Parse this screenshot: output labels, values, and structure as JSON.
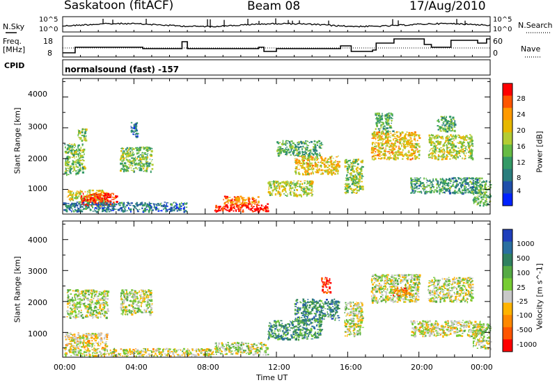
{
  "header": {
    "station": "Saskatoon (fitACF)",
    "beam": "Beam 08",
    "date": "17/Aug/2010"
  },
  "top_panels": {
    "nsky_label": "N.Sky",
    "nsky_ticks": [
      "10^5",
      "10^0"
    ],
    "nsearch_label": "N.Search",
    "nsearch_ticks": [
      "10^5",
      "10^0"
    ],
    "freq_label_1": "Freq.",
    "freq_label_2": "[MHz]",
    "freq_ticks": [
      "18",
      "8"
    ],
    "nave_label": "Nave",
    "nave_ticks": [
      "60",
      "0"
    ],
    "cpid_label": "CPID",
    "cpid_text": "normalsound (fast) -157"
  },
  "chart_data": [
    {
      "type": "heatmap",
      "panel": "power",
      "ylabel": "Slant Range [km]",
      "xlabel": "",
      "y_ticks": [
        "4000",
        "3000",
        "2000",
        "1000"
      ],
      "ylim": [
        200,
        4600
      ],
      "xlim_hours": [
        0,
        24
      ],
      "colorbar_label": "Power [dB]",
      "colorbar_ticks": [
        "28",
        "24",
        "20",
        "16",
        "12",
        "8",
        "4"
      ],
      "colorbar_colors": [
        "#ff0000",
        "#ff5500",
        "#ff9900",
        "#e6b800",
        "#b3cc33",
        "#66bb44",
        "#339966",
        "#2a7d7d",
        "#1f4faa",
        "#0022ff"
      ],
      "blobs": [
        {
          "t0": 0.1,
          "t1": 1.2,
          "r0": 1500,
          "r1": 2500,
          "level": 0.45
        },
        {
          "t0": 0.2,
          "t1": 2.5,
          "r0": 600,
          "r1": 1000,
          "level": 0.6
        },
        {
          "t0": 1.0,
          "t1": 3.0,
          "r0": 500,
          "r1": 900,
          "level": 0.95
        },
        {
          "t0": 0.8,
          "t1": 1.3,
          "r0": 2600,
          "r1": 3000,
          "level": 0.5
        },
        {
          "t0": 3.2,
          "t1": 5.0,
          "r0": 1600,
          "r1": 2400,
          "level": 0.45
        },
        {
          "t0": 3.8,
          "t1": 4.2,
          "r0": 2700,
          "r1": 3200,
          "level": 0.2
        },
        {
          "t0": 0.0,
          "t1": 7.0,
          "r0": 300,
          "r1": 600,
          "level": 0.25
        },
        {
          "t0": 8.5,
          "t1": 11.5,
          "r0": 300,
          "r1": 550,
          "level": 0.98
        },
        {
          "t0": 9.0,
          "t1": 11.0,
          "r0": 550,
          "r1": 800,
          "level": 0.8
        },
        {
          "t0": 11.5,
          "t1": 14.0,
          "r0": 800,
          "r1": 1300,
          "level": 0.55
        },
        {
          "t0": 13.0,
          "t1": 15.5,
          "r0": 1500,
          "r1": 2100,
          "level": 0.65
        },
        {
          "t0": 12.0,
          "t1": 14.5,
          "r0": 2100,
          "r1": 2600,
          "level": 0.4
        },
        {
          "t0": 15.8,
          "t1": 16.8,
          "r0": 900,
          "r1": 2000,
          "level": 0.5
        },
        {
          "t0": 17.3,
          "t1": 20.0,
          "r0": 2000,
          "r1": 2900,
          "level": 0.65
        },
        {
          "t0": 17.5,
          "t1": 18.5,
          "r0": 2900,
          "r1": 3500,
          "level": 0.4
        },
        {
          "t0": 20.5,
          "t1": 23.0,
          "r0": 2000,
          "r1": 2800,
          "level": 0.55
        },
        {
          "t0": 21.0,
          "t1": 22.0,
          "r0": 2900,
          "r1": 3400,
          "level": 0.4
        },
        {
          "t0": 19.5,
          "t1": 23.5,
          "r0": 900,
          "r1": 1400,
          "level": 0.35
        },
        {
          "t0": 23.0,
          "t1": 24.0,
          "r0": 500,
          "r1": 1300,
          "level": 0.4
        }
      ]
    },
    {
      "type": "heatmap",
      "panel": "velocity",
      "ylabel": "Slant Range [km]",
      "xlabel": "Time UT",
      "x_ticks": [
        "00:00",
        "04:00",
        "08:00",
        "12:00",
        "16:00",
        "20:00",
        "00:00"
      ],
      "y_ticks": [
        "4000",
        "3000",
        "2000",
        "1000"
      ],
      "ylim": [
        200,
        4600
      ],
      "xlim_hours": [
        0,
        24
      ],
      "colorbar_label": "Velocity [m s^-1]",
      "colorbar_ticks": [
        "1000",
        "500",
        "100",
        "25",
        "-25",
        "-100",
        "-500",
        "-1000"
      ],
      "colorbar_colors": [
        "#1f3fbb",
        "#2a6fa0",
        "#2f8060",
        "#55aa44",
        "#77cc33",
        "#c8c8c8",
        "#ffb300",
        "#ff8800",
        "#ff5500",
        "#ff0000"
      ],
      "blobs": [
        {
          "t0": 0.1,
          "t1": 2.5,
          "r0": 500,
          "r1": 1000,
          "level": 0.4
        },
        {
          "t0": 0.2,
          "t1": 2.5,
          "r0": 1500,
          "r1": 2400,
          "level": 0.5
        },
        {
          "t0": 3.2,
          "t1": 5.0,
          "r0": 1600,
          "r1": 2400,
          "level": 0.5
        },
        {
          "t0": 0.0,
          "t1": 8.5,
          "r0": 250,
          "r1": 500,
          "level": 0.45
        },
        {
          "t0": 8.5,
          "t1": 11.5,
          "r0": 300,
          "r1": 700,
          "level": 0.5
        },
        {
          "t0": 11.5,
          "t1": 14.5,
          "r0": 800,
          "r1": 1400,
          "level": 0.72
        },
        {
          "t0": 13.0,
          "t1": 15.5,
          "r0": 1400,
          "r1": 2100,
          "level": 0.75
        },
        {
          "t0": 14.5,
          "t1": 15.0,
          "r0": 2300,
          "r1": 2800,
          "level": 0.1
        },
        {
          "t0": 15.8,
          "t1": 16.8,
          "r0": 900,
          "r1": 2000,
          "level": 0.5
        },
        {
          "t0": 17.3,
          "t1": 20.0,
          "r0": 2000,
          "r1": 2900,
          "level": 0.5
        },
        {
          "t0": 18.5,
          "t1": 19.5,
          "r0": 2200,
          "r1": 2500,
          "level": 0.25
        },
        {
          "t0": 20.5,
          "t1": 23.0,
          "r0": 2000,
          "r1": 2800,
          "level": 0.5
        },
        {
          "t0": 19.5,
          "t1": 23.5,
          "r0": 900,
          "r1": 1400,
          "level": 0.45
        },
        {
          "t0": 23.0,
          "t1": 24.0,
          "r0": 500,
          "r1": 1300,
          "level": 0.5
        }
      ]
    }
  ]
}
